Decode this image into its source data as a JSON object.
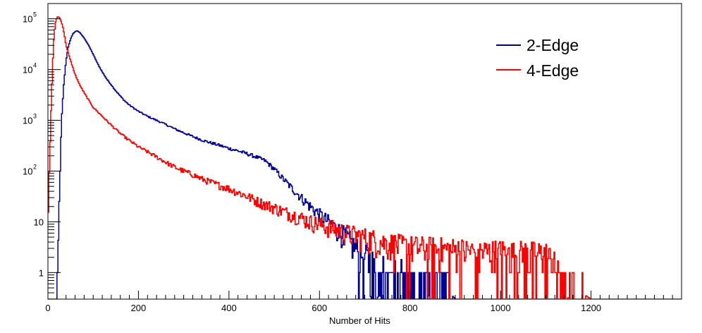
{
  "chart_data": {
    "type": "line",
    "title": "",
    "xlabel": "Number of Hits",
    "ylabel": "",
    "xlim": [
      0,
      1400
    ],
    "ylim": [
      0.3,
      200000
    ],
    "yscale": "log",
    "grid": false,
    "legend_position": "top-right",
    "x_ticks": [
      "0",
      "200",
      "400",
      "600",
      "800",
      "1000",
      "1200"
    ],
    "y_ticks": [
      {
        "base": "1",
        "exp": ""
      },
      {
        "base": "10",
        "exp": ""
      },
      {
        "base": "10",
        "exp": "2"
      },
      {
        "base": "10",
        "exp": "3"
      },
      {
        "base": "10",
        "exp": "4"
      },
      {
        "base": "10",
        "exp": "5"
      }
    ],
    "series": [
      {
        "name": "2-Edge",
        "color": "#000099",
        "points": [
          [
            20,
            0.3
          ],
          [
            25,
            20
          ],
          [
            30,
            1000
          ],
          [
            35,
            5000
          ],
          [
            40,
            15000
          ],
          [
            45,
            28000
          ],
          [
            50,
            40000
          ],
          [
            55,
            50000
          ],
          [
            60,
            56000
          ],
          [
            65,
            58000
          ],
          [
            70,
            54000
          ],
          [
            80,
            42000
          ],
          [
            90,
            30000
          ],
          [
            100,
            20000
          ],
          [
            110,
            13000
          ],
          [
            120,
            9000
          ],
          [
            130,
            6500
          ],
          [
            140,
            5000
          ],
          [
            150,
            3800
          ],
          [
            160,
            3000
          ],
          [
            170,
            2400
          ],
          [
            180,
            2000
          ],
          [
            200,
            1500
          ],
          [
            220,
            1200
          ],
          [
            240,
            1000
          ],
          [
            260,
            830
          ],
          [
            280,
            680
          ],
          [
            300,
            570
          ],
          [
            320,
            480
          ],
          [
            340,
            410
          ],
          [
            360,
            360
          ],
          [
            380,
            320
          ],
          [
            400,
            280
          ],
          [
            420,
            250
          ],
          [
            440,
            220
          ],
          [
            460,
            190
          ],
          [
            480,
            160
          ],
          [
            500,
            110
          ],
          [
            520,
            70
          ],
          [
            540,
            45
          ],
          [
            560,
            30
          ],
          [
            580,
            20
          ],
          [
            600,
            14
          ],
          [
            620,
            10
          ],
          [
            640,
            7
          ],
          [
            660,
            5
          ],
          [
            680,
            3
          ],
          [
            700,
            2
          ],
          [
            720,
            1.5
          ],
          [
            740,
            1.2
          ],
          [
            760,
            1
          ],
          [
            780,
            1
          ],
          [
            800,
            0.8
          ],
          [
            820,
            0.7
          ],
          [
            840,
            0.7
          ],
          [
            860,
            0.6
          ],
          [
            880,
            0.5
          ],
          [
            900,
            0.3
          ],
          [
            1390,
            0.3
          ],
          [
            1392,
            1
          ],
          [
            1394,
            0.3
          ],
          [
            1400,
            0.3
          ]
        ]
      },
      {
        "name": "4-Edge",
        "color": "#ff0000",
        "points": [
          [
            0,
            7
          ],
          [
            4,
            200
          ],
          [
            8,
            3000
          ],
          [
            12,
            30000
          ],
          [
            16,
            80000
          ],
          [
            20,
            108000
          ],
          [
            24,
            110000
          ],
          [
            28,
            95000
          ],
          [
            32,
            75000
          ],
          [
            36,
            50000
          ],
          [
            40,
            30000
          ],
          [
            50,
            15000
          ],
          [
            60,
            8000
          ],
          [
            70,
            5000
          ],
          [
            80,
            3500
          ],
          [
            90,
            2500
          ],
          [
            100,
            1800
          ],
          [
            120,
            1200
          ],
          [
            140,
            800
          ],
          [
            160,
            550
          ],
          [
            180,
            400
          ],
          [
            200,
            300
          ],
          [
            220,
            240
          ],
          [
            240,
            190
          ],
          [
            260,
            150
          ],
          [
            280,
            120
          ],
          [
            300,
            100
          ],
          [
            320,
            85
          ],
          [
            340,
            70
          ],
          [
            360,
            60
          ],
          [
            380,
            52
          ],
          [
            400,
            45
          ],
          [
            420,
            38
          ],
          [
            440,
            32
          ],
          [
            460,
            26
          ],
          [
            480,
            22
          ],
          [
            500,
            19
          ],
          [
            520,
            16
          ],
          [
            540,
            14
          ],
          [
            560,
            12
          ],
          [
            580,
            10
          ],
          [
            600,
            9
          ],
          [
            620,
            8
          ],
          [
            640,
            7
          ],
          [
            660,
            6
          ],
          [
            680,
            5.5
          ],
          [
            700,
            5
          ],
          [
            720,
            4.5
          ],
          [
            740,
            4
          ],
          [
            760,
            3.7
          ],
          [
            780,
            3.4
          ],
          [
            800,
            3.2
          ],
          [
            850,
            3
          ],
          [
            900,
            2.8
          ],
          [
            950,
            2.6
          ],
          [
            1000,
            2.5
          ],
          [
            1050,
            2.4
          ],
          [
            1100,
            2.3
          ],
          [
            1150,
            0.6
          ],
          [
            1200,
            0.3
          ],
          [
            1400,
            0.3
          ]
        ]
      }
    ]
  }
}
